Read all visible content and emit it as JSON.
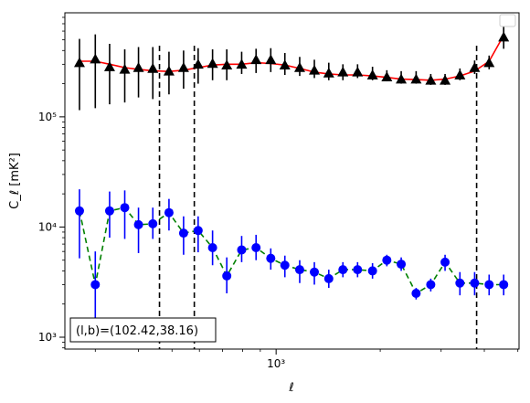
{
  "chart_data": {
    "type": "scatter",
    "xscale": "log",
    "yscale": "log",
    "xlabel": "ℓ",
    "ylabel": "C_ℓ [mK²]",
    "xlim": [
      245,
      5040
    ],
    "ylim": [
      780,
      880000
    ],
    "x_ticks": [
      {
        "value": 1000,
        "label": "10³"
      }
    ],
    "y_ticks": [
      {
        "value": 1000,
        "label": "10³"
      },
      {
        "value": 10000,
        "label": "10⁴"
      },
      {
        "value": 100000,
        "label": "10⁵"
      }
    ],
    "grid": false,
    "legend": {
      "position": "top-right",
      "entries": []
    },
    "annotation": "(l,b)=(102.42,38.16)",
    "vlines": [
      460,
      580,
      3800
    ],
    "series": [
      {
        "marker": "triangle",
        "color": "#000000",
        "fit_color": "#ff0000",
        "fit_style": "solid",
        "x": [
          270,
          300,
          330,
          365,
          400,
          440,
          490,
          540,
          595,
          655,
          720,
          795,
          875,
          965,
          1060,
          1170,
          1290,
          1420,
          1560,
          1720,
          1900,
          2090,
          2300,
          2540,
          2800,
          3080,
          3400,
          3750,
          4130,
          4550
        ],
        "y": [
          310000,
          335000,
          285000,
          270000,
          280000,
          275000,
          260000,
          280000,
          300000,
          305000,
          295000,
          300000,
          330000,
          330000,
          295000,
          280000,
          265000,
          250000,
          255000,
          255000,
          240000,
          230000,
          220000,
          220000,
          215000,
          215000,
          240000,
          280000,
          310000,
          530000
        ],
        "err_low": [
          115000,
          120000,
          130000,
          135000,
          150000,
          145000,
          160000,
          180000,
          200000,
          215000,
          215000,
          245000,
          250000,
          255000,
          240000,
          235000,
          225000,
          215000,
          215000,
          225000,
          215000,
          210000,
          200000,
          200000,
          195000,
          195000,
          215000,
          245000,
          270000,
          415000
        ],
        "err_high": [
          510000,
          560000,
          460000,
          410000,
          430000,
          430000,
          390000,
          400000,
          420000,
          410000,
          410000,
          390000,
          415000,
          420000,
          380000,
          350000,
          330000,
          310000,
          300000,
          300000,
          285000,
          265000,
          260000,
          260000,
          245000,
          245000,
          275000,
          325000,
          360000,
          670000
        ],
        "fit_y": [
          320000,
          320000,
          300000,
          280000,
          270000,
          262000,
          258000,
          265000,
          280000,
          295000,
          300000,
          300000,
          310000,
          305000,
          295000,
          275000,
          255000,
          245000,
          240000,
          240000,
          235000,
          228000,
          220000,
          218000,
          215000,
          220000,
          235000,
          260000,
          320000,
          550000
        ]
      },
      {
        "marker": "circle",
        "color": "#0000ff",
        "fit_color": "#008000",
        "fit_style": "dashed",
        "x": [
          270,
          300,
          330,
          365,
          400,
          440,
          490,
          540,
          595,
          655,
          720,
          795,
          875,
          965,
          1060,
          1170,
          1290,
          1420,
          1560,
          1720,
          1900,
          2090,
          2300,
          2540,
          2800,
          3080,
          3400,
          3750,
          4130,
          4550
        ],
        "y": [
          14000,
          3000,
          14000,
          15000,
          10500,
          10700,
          13500,
          8800,
          9300,
          6500,
          3600,
          6200,
          6500,
          5200,
          4500,
          4100,
          3900,
          3400,
          4100,
          4100,
          4000,
          5000,
          4600,
          2500,
          3000,
          4800,
          3100,
          3100,
          3000,
          3000
        ],
        "err_low": [
          5200,
          1200,
          8000,
          7800,
          5800,
          7800,
          9300,
          5600,
          5900,
          4500,
          2500,
          4800,
          5000,
          4100,
          3500,
          3100,
          3000,
          2800,
          3500,
          3500,
          3400,
          4400,
          4000,
          2200,
          2600,
          4000,
          2400,
          2400,
          2400,
          2400
        ],
        "err_high": [
          22000,
          6000,
          21000,
          21500,
          15000,
          15000,
          18000,
          12500,
          12500,
          9300,
          5300,
          8300,
          8500,
          6400,
          5500,
          5000,
          4800,
          4100,
          4800,
          4800,
          4700,
          5600,
          5300,
          2800,
          3400,
          5600,
          3900,
          3900,
          3700,
          3700
        ],
        "fit_y": [
          14000,
          3000,
          14000,
          15000,
          10500,
          10700,
          13500,
          8800,
          9300,
          6500,
          3600,
          6200,
          6500,
          5200,
          4500,
          4100,
          3900,
          3400,
          4100,
          4100,
          4000,
          5000,
          4600,
          2500,
          3000,
          4800,
          3100,
          3100,
          3000,
          3000
        ]
      }
    ]
  }
}
